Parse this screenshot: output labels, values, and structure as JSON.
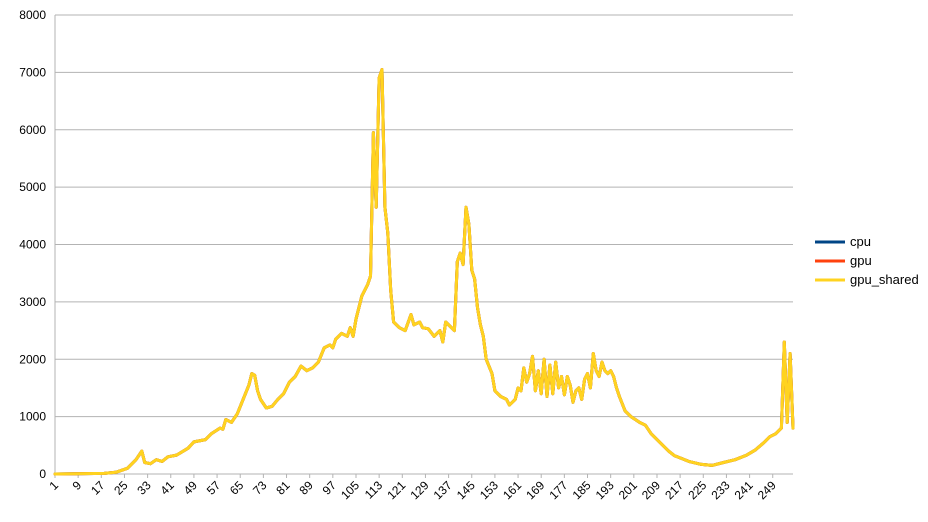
{
  "chart_data": {
    "type": "line",
    "title": "",
    "xlabel": "",
    "ylabel": "",
    "x_range": [
      1,
      256
    ],
    "x_tick_labels": [
      "1",
      "9",
      "17",
      "25",
      "33",
      "41",
      "49",
      "57",
      "65",
      "73",
      "81",
      "89",
      "97",
      "105",
      "113",
      "121",
      "129",
      "137",
      "145",
      "153",
      "161",
      "169",
      "177",
      "185",
      "193",
      "201",
      "209",
      "217",
      "225",
      "233",
      "241",
      "249"
    ],
    "y_tick_labels": [
      "0",
      "1000",
      "2000",
      "3000",
      "4000",
      "5000",
      "6000",
      "7000",
      "8000"
    ],
    "ylim": [
      0,
      8000
    ],
    "grid": "horizontal",
    "legend_position": "right",
    "key_points": [
      [
        1,
        0
      ],
      [
        18,
        10
      ],
      [
        22,
        30
      ],
      [
        26,
        100
      ],
      [
        29,
        250
      ],
      [
        31,
        400
      ],
      [
        32,
        200
      ],
      [
        34,
        180
      ],
      [
        36,
        250
      ],
      [
        38,
        220
      ],
      [
        40,
        300
      ],
      [
        43,
        330
      ],
      [
        47,
        450
      ],
      [
        49,
        560
      ],
      [
        53,
        600
      ],
      [
        55,
        700
      ],
      [
        58,
        800
      ],
      [
        59,
        780
      ],
      [
        60,
        950
      ],
      [
        62,
        900
      ],
      [
        64,
        1050
      ],
      [
        66,
        1300
      ],
      [
        68,
        1550
      ],
      [
        69,
        1750
      ],
      [
        70,
        1720
      ],
      [
        71,
        1450
      ],
      [
        72,
        1300
      ],
      [
        74,
        1150
      ],
      [
        76,
        1180
      ],
      [
        78,
        1300
      ],
      [
        80,
        1400
      ],
      [
        82,
        1600
      ],
      [
        84,
        1700
      ],
      [
        86,
        1880
      ],
      [
        88,
        1800
      ],
      [
        90,
        1850
      ],
      [
        92,
        1950
      ],
      [
        94,
        2200
      ],
      [
        96,
        2250
      ],
      [
        97,
        2200
      ],
      [
        98,
        2350
      ],
      [
        100,
        2450
      ],
      [
        102,
        2400
      ],
      [
        103,
        2550
      ],
      [
        104,
        2400
      ],
      [
        105,
        2700
      ],
      [
        106,
        2900
      ],
      [
        107,
        3100
      ],
      [
        109,
        3300
      ],
      [
        110,
        3450
      ],
      [
        111,
        5950
      ],
      [
        112,
        4650
      ],
      [
        113,
        6900
      ],
      [
        114,
        7050
      ],
      [
        115,
        4650
      ],
      [
        116,
        4200
      ],
      [
        117,
        3200
      ],
      [
        118,
        2650
      ],
      [
        120,
        2550
      ],
      [
        122,
        2500
      ],
      [
        124,
        2780
      ],
      [
        125,
        2600
      ],
      [
        127,
        2650
      ],
      [
        128,
        2550
      ],
      [
        130,
        2530
      ],
      [
        132,
        2400
      ],
      [
        134,
        2500
      ],
      [
        135,
        2300
      ],
      [
        136,
        2650
      ],
      [
        138,
        2550
      ],
      [
        139,
        2500
      ],
      [
        140,
        3700
      ],
      [
        141,
        3850
      ],
      [
        142,
        3650
      ],
      [
        143,
        4650
      ],
      [
        144,
        4350
      ],
      [
        145,
        3550
      ],
      [
        146,
        3400
      ],
      [
        147,
        2900
      ],
      [
        148,
        2600
      ],
      [
        149,
        2400
      ],
      [
        150,
        2000
      ],
      [
        152,
        1750
      ],
      [
        153,
        1450
      ],
      [
        155,
        1350
      ],
      [
        157,
        1300
      ],
      [
        158,
        1200
      ],
      [
        160,
        1300
      ],
      [
        161,
        1500
      ],
      [
        162,
        1450
      ],
      [
        163,
        1850
      ],
      [
        164,
        1600
      ],
      [
        165,
        1750
      ],
      [
        166,
        2050
      ],
      [
        167,
        1450
      ],
      [
        168,
        1800
      ],
      [
        169,
        1400
      ],
      [
        170,
        2000
      ],
      [
        171,
        1350
      ],
      [
        172,
        1900
      ],
      [
        173,
        1400
      ],
      [
        174,
        1950
      ],
      [
        175,
        1500
      ],
      [
        176,
        1700
      ],
      [
        177,
        1380
      ],
      [
        178,
        1700
      ],
      [
        179,
        1550
      ],
      [
        180,
        1250
      ],
      [
        181,
        1450
      ],
      [
        182,
        1500
      ],
      [
        183,
        1300
      ],
      [
        184,
        1650
      ],
      [
        185,
        1750
      ],
      [
        186,
        1500
      ],
      [
        187,
        2100
      ],
      [
        188,
        1800
      ],
      [
        189,
        1700
      ],
      [
        190,
        1950
      ],
      [
        191,
        1800
      ],
      [
        192,
        1750
      ],
      [
        193,
        1800
      ],
      [
        194,
        1700
      ],
      [
        195,
        1500
      ],
      [
        196,
        1350
      ],
      [
        198,
        1100
      ],
      [
        200,
        1000
      ],
      [
        203,
        900
      ],
      [
        205,
        850
      ],
      [
        207,
        700
      ],
      [
        209,
        600
      ],
      [
        211,
        500
      ],
      [
        213,
        400
      ],
      [
        215,
        320
      ],
      [
        217,
        280
      ],
      [
        220,
        220
      ],
      [
        224,
        170
      ],
      [
        228,
        150
      ],
      [
        232,
        200
      ],
      [
        236,
        250
      ],
      [
        240,
        330
      ],
      [
        243,
        420
      ],
      [
        246,
        550
      ],
      [
        248,
        650
      ],
      [
        250,
        700
      ],
      [
        252,
        800
      ],
      [
        253,
        2300
      ],
      [
        254,
        900
      ],
      [
        255,
        2100
      ],
      [
        256,
        800
      ]
    ],
    "series": [
      {
        "name": "cpu",
        "color": "#004586"
      },
      {
        "name": "gpu",
        "color": "#ff420e"
      },
      {
        "name": "gpu_shared",
        "color": "#ffd320"
      }
    ]
  }
}
